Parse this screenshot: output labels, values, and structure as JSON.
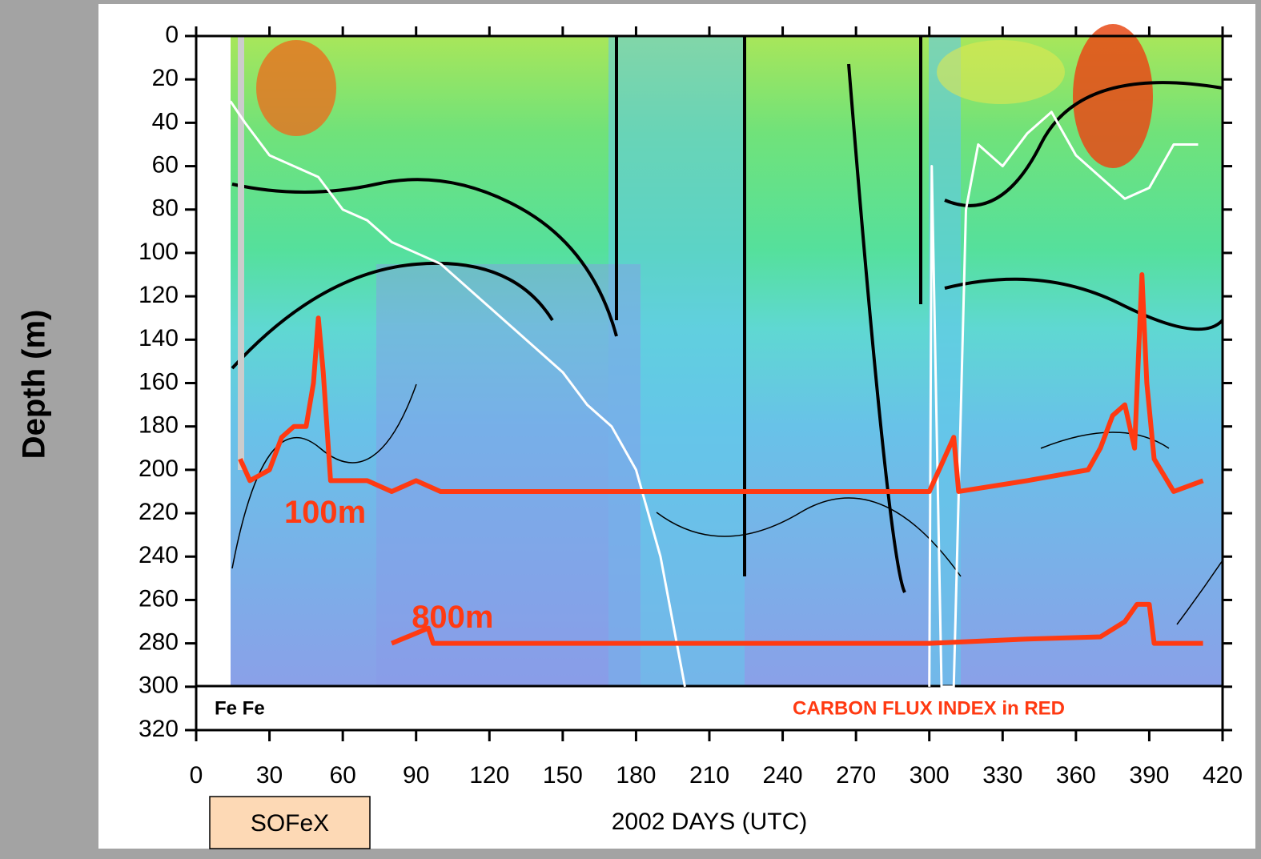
{
  "chart_data": {
    "type": "line",
    "y_label": "Depth (m)",
    "x_label": "2002 DAYS (UTC)",
    "annotations": {
      "fe": "Fe Fe",
      "flux": "CARBON FLUX INDEX in RED",
      "experiment": "SOFeX"
    },
    "xlim": [
      0,
      420
    ],
    "ylim": [
      0,
      320
    ],
    "xticks": [
      0,
      30,
      60,
      90,
      120,
      150,
      180,
      210,
      240,
      270,
      300,
      330,
      360,
      390,
      420
    ],
    "yticks": [
      0,
      20,
      40,
      60,
      80,
      100,
      120,
      140,
      160,
      180,
      200,
      220,
      240,
      260,
      280,
      300,
      320
    ],
    "y_inverted": true,
    "series": [
      {
        "color": "#ffffff",
        "x": [
          14,
          20,
          30,
          40,
          50,
          60,
          70,
          80,
          90,
          100,
          110,
          120,
          130,
          140,
          150,
          160,
          170,
          180,
          190,
          200,
          null,
          300,
          301,
          305,
          310,
          315,
          320,
          330,
          340,
          350,
          360,
          370,
          380,
          390,
          400,
          410
        ],
        "values": [
          30,
          40,
          55,
          60,
          65,
          80,
          85,
          95,
          100,
          105,
          115,
          125,
          135,
          145,
          155,
          170,
          180,
          200,
          240,
          300,
          null,
          300,
          60,
          300,
          300,
          80,
          50,
          60,
          45,
          35,
          55,
          65,
          75,
          70,
          50,
          50
        ]
      },
      {
        "name": "100m",
        "color": "#ff3a12",
        "x": [
          18,
          22,
          30,
          35,
          40,
          45,
          48,
          50,
          52,
          55,
          60,
          70,
          80,
          90,
          100,
          150,
          200,
          250,
          300,
          310,
          312,
          340,
          365,
          370,
          375,
          380,
          384,
          387,
          389,
          392,
          400,
          412
        ],
        "values": [
          195,
          205,
          200,
          185,
          180,
          180,
          160,
          130,
          155,
          205,
          205,
          205,
          210,
          205,
          210,
          210,
          210,
          210,
          210,
          185,
          210,
          205,
          200,
          190,
          175,
          170,
          190,
          110,
          160,
          195,
          210,
          205
        ]
      },
      {
        "name": "800m",
        "color": "#ff3a12",
        "x": [
          80,
          95,
          97,
          150,
          200,
          300,
          340,
          370,
          380,
          385,
          390,
          392,
          412
        ],
        "values": [
          280,
          273,
          280,
          280,
          280,
          280,
          278,
          277,
          270,
          262,
          262,
          280,
          280
        ]
      }
    ]
  }
}
